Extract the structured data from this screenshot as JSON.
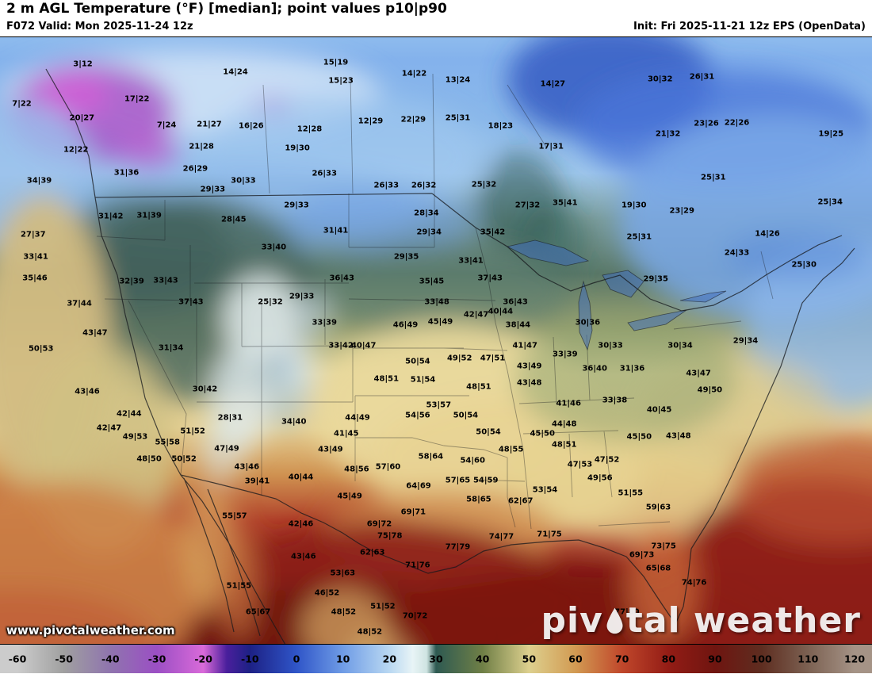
{
  "header": {
    "title": "2 m AGL Temperature (°F) [median]; point values p10|p90",
    "left_sub": "F072 Valid: Mon 2025-11-24 12z",
    "right_sub": "Init: Fri 2025-11-21 12z EPS (OpenData)"
  },
  "watermark": "www.pivotalweather.com",
  "logo": {
    "text_left": "piv",
    "text_right": "tal weather",
    "drop_icon": "water-drop-icon"
  },
  "colorbar": {
    "min": -60,
    "max": 120,
    "ticks": [
      -60,
      -50,
      -40,
      -30,
      -20,
      -10,
      0,
      10,
      20,
      30,
      40,
      50,
      60,
      70,
      80,
      90,
      100,
      110,
      120
    ],
    "stops": [
      {
        "v": -60,
        "c": "#cccccc"
      },
      {
        "v": -50,
        "c": "#a0a0a0"
      },
      {
        "v": -40,
        "c": "#8f74ae"
      },
      {
        "v": -30,
        "c": "#9b4fc4"
      },
      {
        "v": -20,
        "c": "#d96ad9"
      },
      {
        "v": -15,
        "c": "#4a1f9c"
      },
      {
        "v": -10,
        "c": "#1d2185"
      },
      {
        "v": 0,
        "c": "#2f55c8"
      },
      {
        "v": 10,
        "c": "#6f9ce6"
      },
      {
        "v": 20,
        "c": "#b9d8f2"
      },
      {
        "v": 25,
        "c": "#e8f4f6"
      },
      {
        "v": 28,
        "c": "#cfe4e2"
      },
      {
        "v": 30,
        "c": "#2e5a52"
      },
      {
        "v": 40,
        "c": "#6f7f46"
      },
      {
        "v": 50,
        "c": "#ddd08e"
      },
      {
        "v": 60,
        "c": "#d29a52"
      },
      {
        "v": 70,
        "c": "#c0472b"
      },
      {
        "v": 80,
        "c": "#931c15"
      },
      {
        "v": 90,
        "c": "#6f1510"
      },
      {
        "v": 100,
        "c": "#5e2d20"
      },
      {
        "v": 110,
        "c": "#7c6152"
      },
      {
        "v": 120,
        "c": "#a59386"
      }
    ]
  },
  "chart_data": {
    "type": "heatmap",
    "title": "2 m AGL Temperature (°F) [median]; point values p10|p90",
    "units": "°F",
    "legend_range": [
      -60,
      120
    ],
    "points": [
      {
        "t": "3|12",
        "x": 9.5,
        "y": 4.4
      },
      {
        "t": "17|22",
        "x": 15.7,
        "y": 10.2
      },
      {
        "t": "7|22",
        "x": 2.5,
        "y": 11.0
      },
      {
        "t": "20|27",
        "x": 9.4,
        "y": 13.3
      },
      {
        "t": "14|24",
        "x": 27.0,
        "y": 5.7
      },
      {
        "t": "15|19",
        "x": 38.5,
        "y": 4.2
      },
      {
        "t": "15|23",
        "x": 39.1,
        "y": 7.2
      },
      {
        "t": "14|22",
        "x": 47.5,
        "y": 6.0
      },
      {
        "t": "13|24",
        "x": 52.5,
        "y": 7.0
      },
      {
        "t": "14|27",
        "x": 63.4,
        "y": 7.7
      },
      {
        "t": "30|32",
        "x": 75.7,
        "y": 6.9
      },
      {
        "t": "26|31",
        "x": 80.5,
        "y": 6.5
      },
      {
        "t": "7|24",
        "x": 19.1,
        "y": 14.5
      },
      {
        "t": "21|27",
        "x": 24.0,
        "y": 14.4
      },
      {
        "t": "16|26",
        "x": 28.8,
        "y": 14.6
      },
      {
        "t": "12|28",
        "x": 35.5,
        "y": 15.1
      },
      {
        "t": "12|29",
        "x": 42.5,
        "y": 13.8
      },
      {
        "t": "22|29",
        "x": 47.4,
        "y": 13.6
      },
      {
        "t": "25|31",
        "x": 52.5,
        "y": 13.3
      },
      {
        "t": "18|23",
        "x": 57.4,
        "y": 14.6
      },
      {
        "t": "23|26",
        "x": 81.0,
        "y": 14.2
      },
      {
        "t": "22|26",
        "x": 84.5,
        "y": 14.1
      },
      {
        "t": "21|32",
        "x": 76.6,
        "y": 15.9
      },
      {
        "t": "12|22",
        "x": 8.7,
        "y": 18.5
      },
      {
        "t": "21|28",
        "x": 23.1,
        "y": 18.0
      },
      {
        "t": "19|30",
        "x": 34.1,
        "y": 18.3
      },
      {
        "t": "17|31",
        "x": 63.2,
        "y": 18.1
      },
      {
        "t": "19|25",
        "x": 95.3,
        "y": 15.9
      },
      {
        "t": "31|36",
        "x": 14.5,
        "y": 22.3
      },
      {
        "t": "26|29",
        "x": 22.4,
        "y": 21.7
      },
      {
        "t": "30|33",
        "x": 27.9,
        "y": 23.6
      },
      {
        "t": "26|33",
        "x": 37.2,
        "y": 22.5
      },
      {
        "t": "34|39",
        "x": 4.5,
        "y": 23.6
      },
      {
        "t": "26|33",
        "x": 44.3,
        "y": 24.5
      },
      {
        "t": "26|32",
        "x": 48.6,
        "y": 24.5
      },
      {
        "t": "25|32",
        "x": 55.5,
        "y": 24.3
      },
      {
        "t": "29|33",
        "x": 24.4,
        "y": 25.1
      },
      {
        "t": "29|33",
        "x": 34.0,
        "y": 27.7
      },
      {
        "t": "28|34",
        "x": 48.9,
        "y": 29.0
      },
      {
        "t": "27|32",
        "x": 60.5,
        "y": 27.7
      },
      {
        "t": "35|41",
        "x": 64.8,
        "y": 27.3
      },
      {
        "t": "19|30",
        "x": 72.7,
        "y": 27.7
      },
      {
        "t": "23|29",
        "x": 78.2,
        "y": 28.6
      },
      {
        "t": "25|34",
        "x": 95.2,
        "y": 27.2
      },
      {
        "t": "31|42",
        "x": 12.7,
        "y": 29.5
      },
      {
        "t": "31|39",
        "x": 17.1,
        "y": 29.4
      },
      {
        "t": "28|45",
        "x": 26.8,
        "y": 30.0
      },
      {
        "t": "31|41",
        "x": 38.5,
        "y": 31.9
      },
      {
        "t": "29|34",
        "x": 49.2,
        "y": 32.2
      },
      {
        "t": "35|42",
        "x": 56.5,
        "y": 32.2
      },
      {
        "t": "25|31",
        "x": 73.3,
        "y": 32.9
      },
      {
        "t": "14|26",
        "x": 88.0,
        "y": 32.4
      },
      {
        "t": "27|37",
        "x": 3.8,
        "y": 32.6
      },
      {
        "t": "33|40",
        "x": 31.4,
        "y": 34.7
      },
      {
        "t": "29|35",
        "x": 46.6,
        "y": 36.2
      },
      {
        "t": "33|41",
        "x": 54.0,
        "y": 36.8
      },
      {
        "t": "24|33",
        "x": 84.5,
        "y": 35.5
      },
      {
        "t": "25|30",
        "x": 92.2,
        "y": 37.5
      },
      {
        "t": "33|41",
        "x": 4.1,
        "y": 36.2
      },
      {
        "t": "37|43",
        "x": 56.2,
        "y": 39.7
      },
      {
        "t": "35|46",
        "x": 4.0,
        "y": 39.8
      },
      {
        "t": "32|39",
        "x": 15.1,
        "y": 40.3
      },
      {
        "t": "33|43",
        "x": 19.0,
        "y": 40.1
      },
      {
        "t": "36|43",
        "x": 39.2,
        "y": 39.7
      },
      {
        "t": "35|45",
        "x": 49.5,
        "y": 40.3
      },
      {
        "t": "29|35",
        "x": 75.2,
        "y": 39.9
      },
      {
        "t": "25|31",
        "x": 81.8,
        "y": 23.2
      },
      {
        "t": "25|32",
        "x": 31.0,
        "y": 43.6
      },
      {
        "t": "29|33",
        "x": 34.6,
        "y": 42.7
      },
      {
        "t": "37|43",
        "x": 21.9,
        "y": 43.7
      },
      {
        "t": "37|44",
        "x": 9.1,
        "y": 43.9
      },
      {
        "t": "33|48",
        "x": 50.1,
        "y": 43.6
      },
      {
        "t": "36|43",
        "x": 59.1,
        "y": 43.6
      },
      {
        "t": "33|39",
        "x": 37.2,
        "y": 47.1
      },
      {
        "t": "46|49",
        "x": 46.5,
        "y": 47.5
      },
      {
        "t": "45|49",
        "x": 50.5,
        "y": 46.9
      },
      {
        "t": "42|47",
        "x": 54.6,
        "y": 45.7
      },
      {
        "t": "40|44",
        "x": 57.4,
        "y": 45.2
      },
      {
        "t": "38|44",
        "x": 59.4,
        "y": 47.5
      },
      {
        "t": "30|36",
        "x": 67.4,
        "y": 47.1
      },
      {
        "t": "43|47",
        "x": 10.9,
        "y": 48.7
      },
      {
        "t": "50|53",
        "x": 4.7,
        "y": 51.4
      },
      {
        "t": "31|34",
        "x": 19.6,
        "y": 51.2
      },
      {
        "t": "33|42",
        "x": 39.1,
        "y": 50.8
      },
      {
        "t": "40|47",
        "x": 41.7,
        "y": 50.8
      },
      {
        "t": "41|47",
        "x": 60.2,
        "y": 50.9
      },
      {
        "t": "33|39",
        "x": 64.8,
        "y": 52.3
      },
      {
        "t": "30|33",
        "x": 70.0,
        "y": 50.8
      },
      {
        "t": "30|34",
        "x": 78.0,
        "y": 50.9
      },
      {
        "t": "29|34",
        "x": 85.5,
        "y": 50.1
      },
      {
        "t": "50|54",
        "x": 47.9,
        "y": 53.5
      },
      {
        "t": "49|52",
        "x": 52.7,
        "y": 53.0
      },
      {
        "t": "47|51",
        "x": 56.5,
        "y": 53.0
      },
      {
        "t": "43|49",
        "x": 60.7,
        "y": 54.3
      },
      {
        "t": "36|40",
        "x": 68.2,
        "y": 54.6
      },
      {
        "t": "31|36",
        "x": 72.5,
        "y": 54.6
      },
      {
        "t": "43|47",
        "x": 80.1,
        "y": 55.4
      },
      {
        "t": "30|42",
        "x": 23.5,
        "y": 58.0
      },
      {
        "t": "48|51",
        "x": 44.3,
        "y": 56.4
      },
      {
        "t": "51|54",
        "x": 48.5,
        "y": 56.5
      },
      {
        "t": "48|51",
        "x": 54.9,
        "y": 57.7
      },
      {
        "t": "43|48",
        "x": 60.7,
        "y": 57.0
      },
      {
        "t": "49|50",
        "x": 81.4,
        "y": 58.2
      },
      {
        "t": "33|38",
        "x": 70.5,
        "y": 59.9
      },
      {
        "t": "41|46",
        "x": 65.2,
        "y": 60.4
      },
      {
        "t": "43|46",
        "x": 10.0,
        "y": 58.4
      },
      {
        "t": "42|44",
        "x": 14.8,
        "y": 62.1
      },
      {
        "t": "42|47",
        "x": 12.5,
        "y": 64.5
      },
      {
        "t": "28|31",
        "x": 26.4,
        "y": 62.7
      },
      {
        "t": "34|40",
        "x": 33.7,
        "y": 63.4
      },
      {
        "t": "44|49",
        "x": 41.0,
        "y": 62.7
      },
      {
        "t": "53|57",
        "x": 50.3,
        "y": 60.6
      },
      {
        "t": "54|56",
        "x": 47.9,
        "y": 62.3
      },
      {
        "t": "50|54",
        "x": 53.4,
        "y": 62.3
      },
      {
        "t": "50|54",
        "x": 56.0,
        "y": 65.1
      },
      {
        "t": "45|50",
        "x": 62.2,
        "y": 65.3
      },
      {
        "t": "44|48",
        "x": 64.7,
        "y": 63.8
      },
      {
        "t": "48|51",
        "x": 64.7,
        "y": 67.2
      },
      {
        "t": "40|45",
        "x": 75.6,
        "y": 61.5
      },
      {
        "t": "43|48",
        "x": 77.8,
        "y": 65.7
      },
      {
        "t": "45|50",
        "x": 73.3,
        "y": 65.9
      },
      {
        "t": "49|53",
        "x": 15.5,
        "y": 65.9
      },
      {
        "t": "55|58",
        "x": 19.2,
        "y": 66.8
      },
      {
        "t": "51|52",
        "x": 22.1,
        "y": 65.0
      },
      {
        "t": "47|49",
        "x": 26.0,
        "y": 67.9
      },
      {
        "t": "41|45",
        "x": 39.7,
        "y": 65.3
      },
      {
        "t": "43|49",
        "x": 37.9,
        "y": 68.0
      },
      {
        "t": "48|50",
        "x": 17.1,
        "y": 69.5
      },
      {
        "t": "50|52",
        "x": 21.1,
        "y": 69.5
      },
      {
        "t": "43|46",
        "x": 28.3,
        "y": 70.9
      },
      {
        "t": "48|56",
        "x": 40.9,
        "y": 71.3
      },
      {
        "t": "57|60",
        "x": 44.5,
        "y": 70.9
      },
      {
        "t": "58|64",
        "x": 49.4,
        "y": 69.1
      },
      {
        "t": "54|60",
        "x": 54.2,
        "y": 69.8
      },
      {
        "t": "48|55",
        "x": 58.6,
        "y": 68.0
      },
      {
        "t": "47|53",
        "x": 66.5,
        "y": 70.4
      },
      {
        "t": "47|52",
        "x": 69.6,
        "y": 69.7
      },
      {
        "t": "49|56",
        "x": 68.8,
        "y": 72.7
      },
      {
        "t": "39|41",
        "x": 29.5,
        "y": 73.2
      },
      {
        "t": "40|44",
        "x": 34.5,
        "y": 72.5
      },
      {
        "t": "64|69",
        "x": 48.0,
        "y": 74.0
      },
      {
        "t": "57|65",
        "x": 52.5,
        "y": 73.1
      },
      {
        "t": "54|59",
        "x": 55.7,
        "y": 73.1
      },
      {
        "t": "53|54",
        "x": 62.5,
        "y": 74.7
      },
      {
        "t": "45|49",
        "x": 40.1,
        "y": 75.7
      },
      {
        "t": "58|65",
        "x": 54.9,
        "y": 76.2
      },
      {
        "t": "62|67",
        "x": 59.7,
        "y": 76.5
      },
      {
        "t": "51|55",
        "x": 72.3,
        "y": 75.1
      },
      {
        "t": "59|63",
        "x": 75.5,
        "y": 77.5
      },
      {
        "t": "69|71",
        "x": 47.4,
        "y": 78.3
      },
      {
        "t": "42|46",
        "x": 34.5,
        "y": 80.3
      },
      {
        "t": "55|57",
        "x": 26.9,
        "y": 78.9
      },
      {
        "t": "69|72",
        "x": 43.5,
        "y": 80.2
      },
      {
        "t": "77|79",
        "x": 52.5,
        "y": 84.1
      },
      {
        "t": "74|77",
        "x": 57.5,
        "y": 82.4
      },
      {
        "t": "71|75",
        "x": 63.0,
        "y": 82.0
      },
      {
        "t": "75|78",
        "x": 44.7,
        "y": 82.2
      },
      {
        "t": "69|73",
        "x": 73.6,
        "y": 85.4
      },
      {
        "t": "73|75",
        "x": 76.1,
        "y": 83.9
      },
      {
        "t": "65|68",
        "x": 75.5,
        "y": 87.6
      },
      {
        "t": "43|46",
        "x": 34.8,
        "y": 85.6
      },
      {
        "t": "62|63",
        "x": 42.7,
        "y": 85.0
      },
      {
        "t": "71|76",
        "x": 47.9,
        "y": 87.1
      },
      {
        "t": "53|63",
        "x": 39.3,
        "y": 88.4
      },
      {
        "t": "51|55",
        "x": 27.4,
        "y": 90.5
      },
      {
        "t": "46|52",
        "x": 37.5,
        "y": 91.6
      },
      {
        "t": "48|52",
        "x": 39.4,
        "y": 94.8
      },
      {
        "t": "51|52",
        "x": 43.9,
        "y": 93.9
      },
      {
        "t": "65|67",
        "x": 29.6,
        "y": 94.8
      },
      {
        "t": "74|76",
        "x": 79.6,
        "y": 89.9
      },
      {
        "t": "77|80",
        "x": 71.9,
        "y": 94.8
      },
      {
        "t": "70|72",
        "x": 47.6,
        "y": 95.4
      },
      {
        "t": "48|52",
        "x": 42.4,
        "y": 98.0
      }
    ]
  }
}
